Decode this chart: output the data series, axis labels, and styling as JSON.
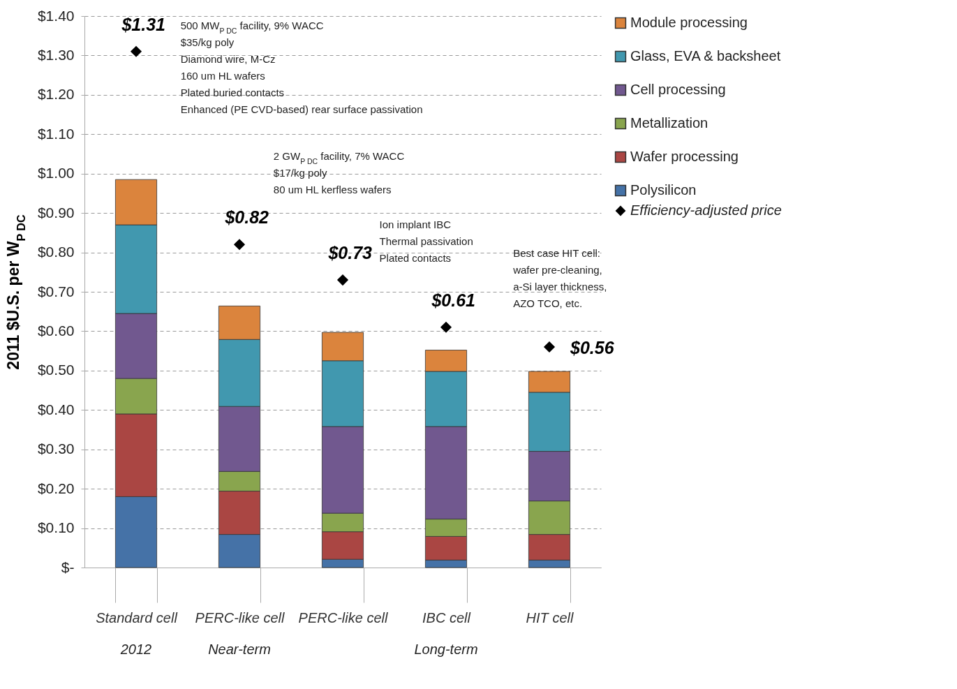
{
  "chart_data": {
    "type": "bar",
    "stacked": true,
    "ylabel": "2011 $U.S. per W$_{P DC}$",
    "categories": [
      "Standard cell",
      "PERC-like cell",
      "PERC-like cell",
      "IBC cell",
      "HIT cell"
    ],
    "series": [
      {
        "name": "Polysilicon",
        "color": "#4572a7",
        "values": [
          0.18,
          0.084,
          0.021,
          0.019,
          0.019
        ]
      },
      {
        "name": "Wafer processing",
        "color": "#aa4643",
        "values": [
          0.21,
          0.11,
          0.07,
          0.06,
          0.065
        ]
      },
      {
        "name": "Metallization",
        "color": "#89a54e",
        "values": [
          0.09,
          0.05,
          0.047,
          0.044,
          0.085
        ]
      },
      {
        "name": "Cell processing",
        "color": "#71588f",
        "values": [
          0.165,
          0.165,
          0.22,
          0.235,
          0.126
        ]
      },
      {
        "name": "Glass, EVA & backsheet",
        "color": "#4198af",
        "values": [
          0.225,
          0.17,
          0.167,
          0.14,
          0.15
        ]
      },
      {
        "name": "Module processing",
        "color": "#db843d",
        "values": [
          0.115,
          0.085,
          0.072,
          0.054,
          0.053
        ]
      },
      {
        "name": "Efficiency-adjusted price",
        "type": "scatter",
        "marker": "diamond",
        "color": "#000000",
        "values": [
          1.31,
          0.82,
          0.73,
          0.61,
          0.56
        ],
        "value_labels": [
          "$1.31",
          "$0.82",
          "$0.73",
          "$0.61",
          "$0.56"
        ]
      }
    ],
    "ylim": [
      0,
      1.4
    ],
    "yticks": [
      {
        "value": 0,
        "label": "$-"
      },
      {
        "value": 0.1,
        "label": "$0.10"
      },
      {
        "value": 0.2,
        "label": "$0.20"
      },
      {
        "value": 0.3,
        "label": "$0.30"
      },
      {
        "value": 0.4,
        "label": "$0.40"
      },
      {
        "value": 0.5,
        "label": "$0.50"
      },
      {
        "value": 0.6,
        "label": "$0.60"
      },
      {
        "value": 0.7,
        "label": "$0.70"
      },
      {
        "value": 0.8,
        "label": "$0.80"
      },
      {
        "value": 0.9,
        "label": "$0.90"
      },
      {
        "value": 1.0,
        "label": "$1.00"
      },
      {
        "value": 1.1,
        "label": "$1.10"
      },
      {
        "value": 1.2,
        "label": "$1.20"
      },
      {
        "value": 1.3,
        "label": "$1.30"
      },
      {
        "value": 1.4,
        "label": "$1.40"
      }
    ],
    "grid": "y",
    "legend": "right",
    "annotations": [
      "2012",
      "Near-term",
      "Long-term",
      "500 MW$_{P DC}$ facility, 9% WACC\n$35/kg poly\nDiamond wire, M-Cz\n160 um HL wafers\nPlated buried contacts\nEnhanced (PE CVD-based) rear surface passivation",
      "2 GW$_{P DC}$ facility, 7% WACC\n$17/kg poly\n80 um HL kerfless wafers",
      "Ion implant IBC\nThermal passivation\nPlated contacts",
      "Best case HIT cell:\nwafer pre-cleaning,\na-Si layer thickness,\nAZO TCO, etc."
    ]
  }
}
